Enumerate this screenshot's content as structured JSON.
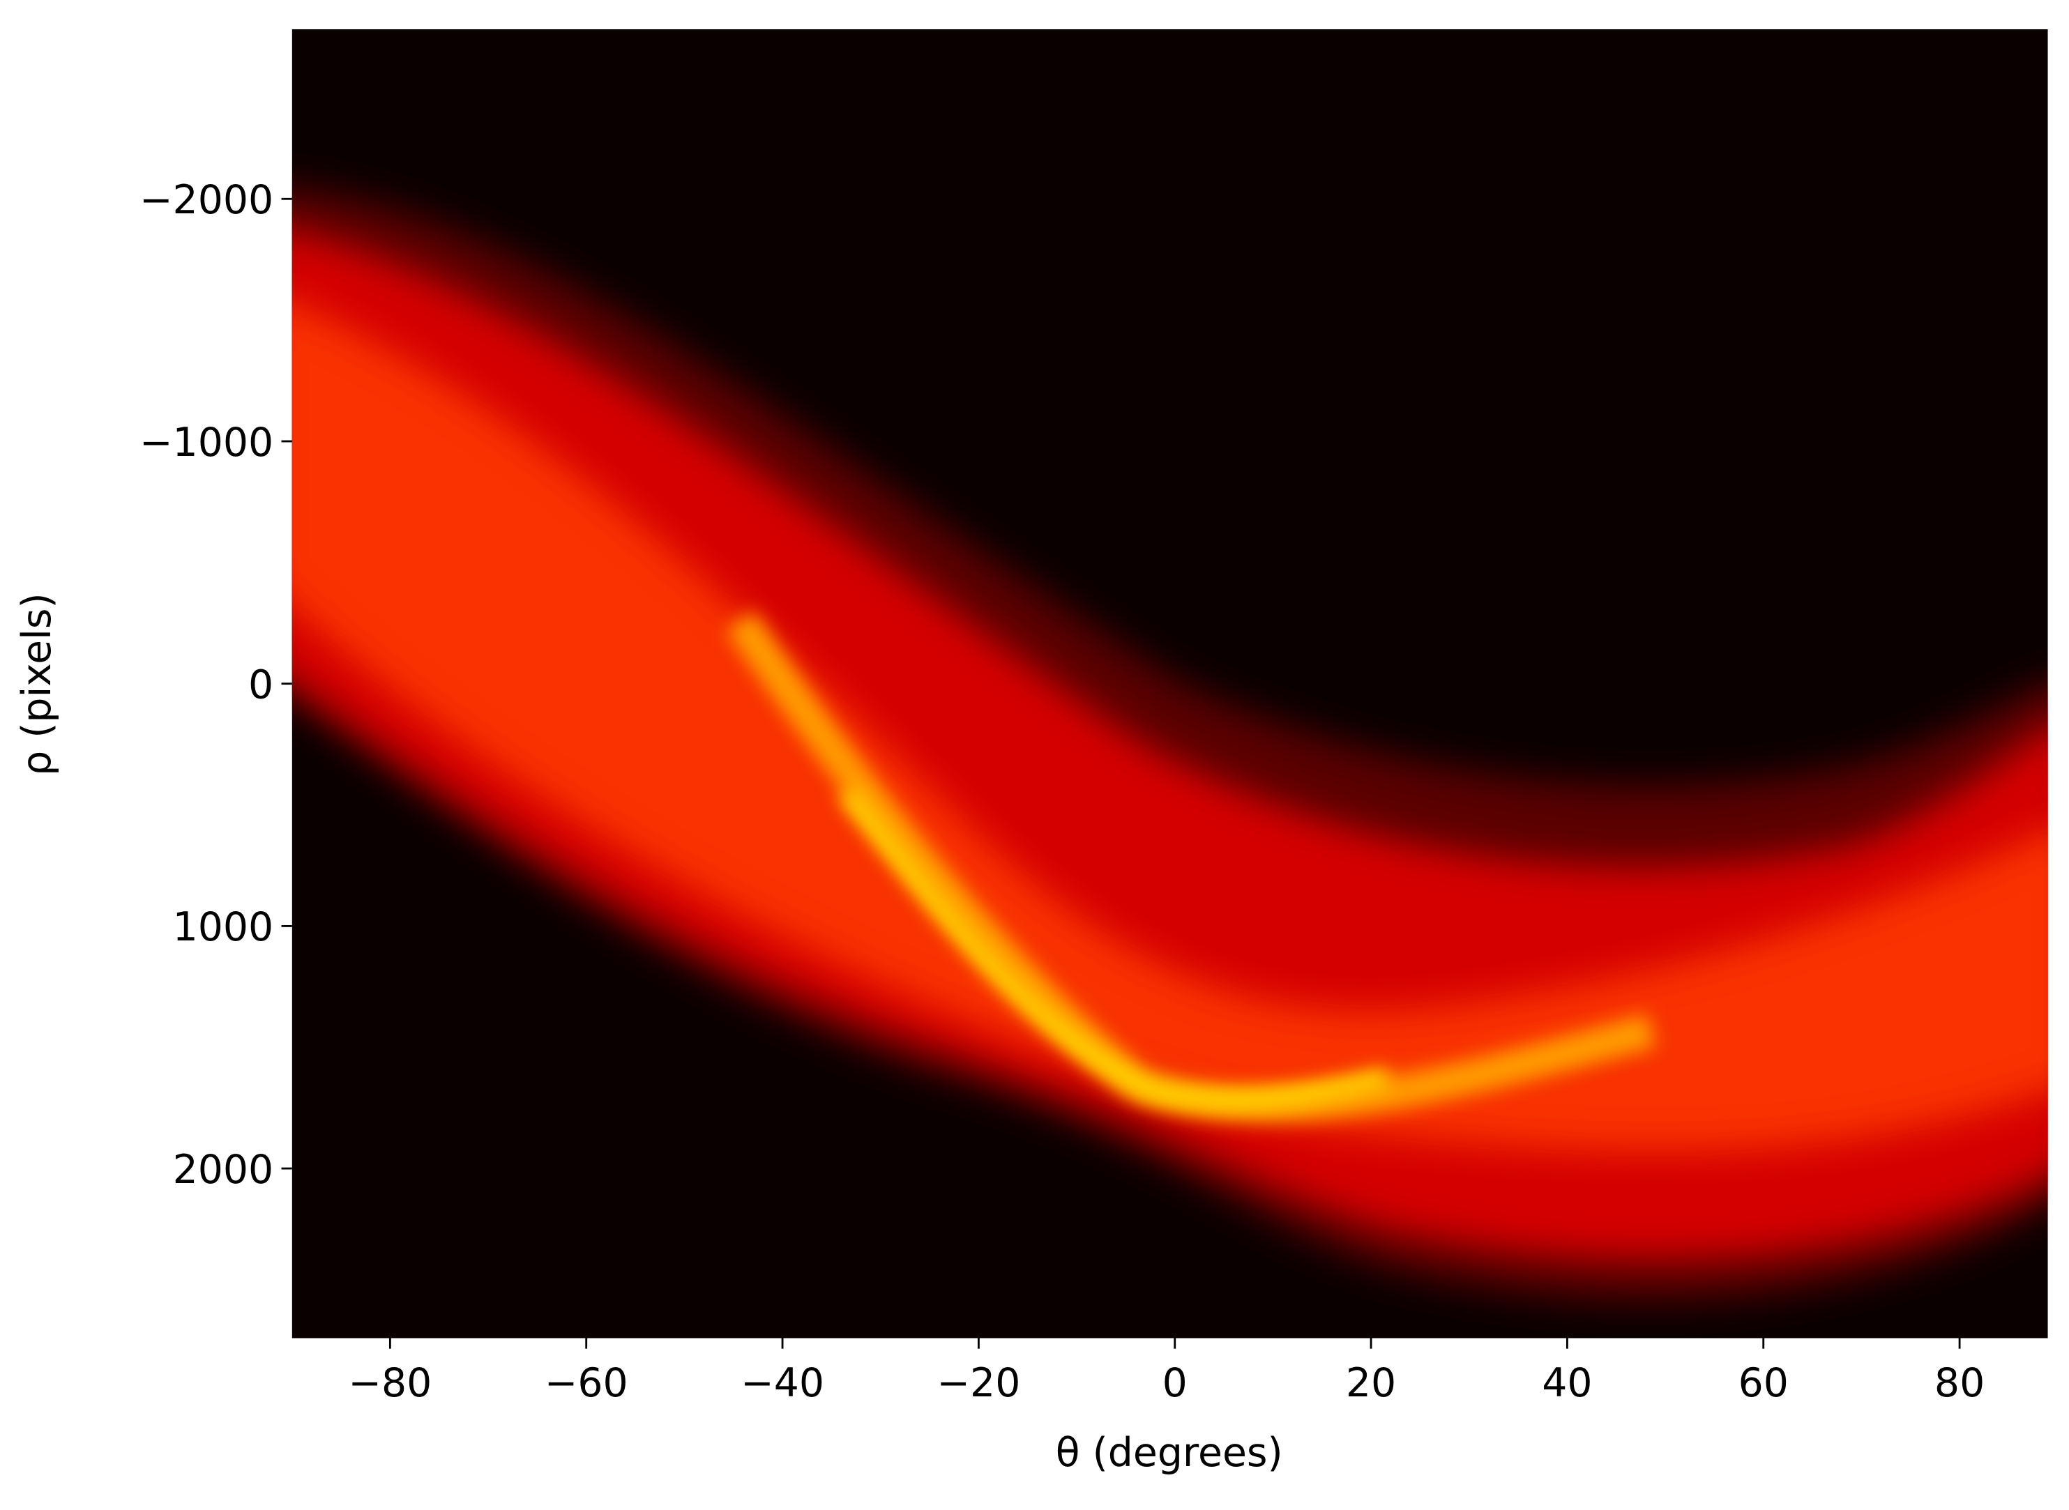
{
  "chart_data": {
    "type": "heatmap",
    "colormap": "hot",
    "xlabel": "θ (degrees)",
    "ylabel": "ρ (pixels)",
    "xlim": [
      -90,
      89
    ],
    "ylim": [
      2700,
      -2700
    ],
    "xticks": [
      {
        "value": -80,
        "label": "−80"
      },
      {
        "value": -60,
        "label": "−60"
      },
      {
        "value": -40,
        "label": "−40"
      },
      {
        "value": -20,
        "label": "−20"
      },
      0,
      20,
      40,
      60,
      80
    ],
    "yticks": [
      {
        "value": -2000,
        "label": "−2000"
      },
      {
        "value": -1000,
        "label": "−1000"
      },
      0,
      1000,
      2000
    ]
  }
}
